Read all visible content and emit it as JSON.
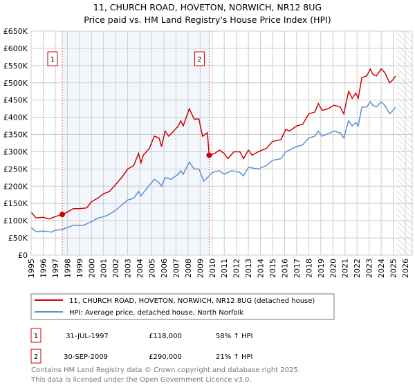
{
  "chart_data": {
    "type": "line",
    "title": "11, CHURCH ROAD, HOVETON, NORWICH, NR12 8UG",
    "subtitle": "Price paid vs. HM Land Registry's House Price Index (HPI)",
    "xlim": [
      1995,
      2026
    ],
    "ylim": [
      0,
      650000
    ],
    "x_ticks": [
      "1995",
      "1996",
      "1997",
      "1998",
      "1999",
      "2000",
      "2001",
      "2002",
      "2003",
      "2004",
      "2005",
      "2006",
      "2007",
      "2008",
      "2009",
      "2010",
      "2011",
      "2012",
      "2013",
      "2014",
      "2015",
      "2016",
      "2017",
      "2018",
      "2019",
      "2020",
      "2021",
      "2022",
      "2023",
      "2024",
      "2025",
      "2026"
    ],
    "y_ticks": [
      {
        "v": 0,
        "label": "£0"
      },
      {
        "v": 50000,
        "label": "£50K"
      },
      {
        "v": 100000,
        "label": "£100K"
      },
      {
        "v": 150000,
        "label": "£150K"
      },
      {
        "v": 200000,
        "label": "£200K"
      },
      {
        "v": 250000,
        "label": "£250K"
      },
      {
        "v": 300000,
        "label": "£300K"
      },
      {
        "v": 350000,
        "label": "£350K"
      },
      {
        "v": 400000,
        "label": "£400K"
      },
      {
        "v": 450000,
        "label": "£450K"
      },
      {
        "v": 500000,
        "label": "£500K"
      },
      {
        "v": 550000,
        "label": "£550K"
      },
      {
        "v": 600000,
        "label": "£600K"
      },
      {
        "v": 650000,
        "label": "£650K"
      }
    ],
    "grid": true,
    "shaded_range": [
      1997.58,
      2009.75
    ],
    "future_hatch_from": 2025.3,
    "series": [
      {
        "name": "11, CHURCH ROAD, HOVETON, NORWICH, NR12 8UG (detached house)",
        "color": "#cc0000",
        "points": [
          [
            1995,
            125
          ],
          [
            1995.4,
            108
          ],
          [
            1996,
            110
          ],
          [
            1996.5,
            105
          ],
          [
            1997,
            112
          ],
          [
            1997.58,
            118
          ],
          [
            1998,
            125
          ],
          [
            1998.5,
            135
          ],
          [
            1999,
            135
          ],
          [
            1999.6,
            137
          ],
          [
            2000,
            155
          ],
          [
            2000.5,
            165
          ],
          [
            2001,
            178
          ],
          [
            2001.5,
            185
          ],
          [
            2002,
            205
          ],
          [
            2002.5,
            225
          ],
          [
            2003,
            250
          ],
          [
            2003.5,
            260
          ],
          [
            2003.9,
            295
          ],
          [
            2004.1,
            268
          ],
          [
            2004.3,
            290
          ],
          [
            2004.8,
            310
          ],
          [
            2005.2,
            345
          ],
          [
            2005.6,
            340
          ],
          [
            2005.8,
            315
          ],
          [
            2006.1,
            360
          ],
          [
            2006.4,
            345
          ],
          [
            2006.8,
            360
          ],
          [
            2007.2,
            375
          ],
          [
            2007.4,
            390
          ],
          [
            2007.6,
            375
          ],
          [
            2008.1,
            425
          ],
          [
            2008.5,
            395
          ],
          [
            2008.9,
            395
          ],
          [
            2009.2,
            345
          ],
          [
            2009.6,
            355
          ],
          [
            2009.75,
            290
          ],
          [
            2010.2,
            295
          ],
          [
            2010.6,
            305
          ],
          [
            2011,
            295
          ],
          [
            2011.3,
            280
          ],
          [
            2011.8,
            300
          ],
          [
            2012.3,
            300
          ],
          [
            2012.6,
            280
          ],
          [
            2013,
            305
          ],
          [
            2013.3,
            290
          ],
          [
            2013.8,
            300
          ],
          [
            2014.5,
            310
          ],
          [
            2015,
            330
          ],
          [
            2015.7,
            335
          ],
          [
            2016.1,
            365
          ],
          [
            2016.4,
            360
          ],
          [
            2017,
            375
          ],
          [
            2017.5,
            380
          ],
          [
            2018,
            410
          ],
          [
            2018.5,
            415
          ],
          [
            2018.8,
            440
          ],
          [
            2019.1,
            420
          ],
          [
            2019.6,
            425
          ],
          [
            2020.1,
            435
          ],
          [
            2020.6,
            430
          ],
          [
            2020.9,
            410
          ],
          [
            2021.3,
            475
          ],
          [
            2021.6,
            455
          ],
          [
            2021.9,
            470
          ],
          [
            2022.1,
            455
          ],
          [
            2022.4,
            515
          ],
          [
            2022.8,
            520
          ],
          [
            2023.1,
            540
          ],
          [
            2023.3,
            525
          ],
          [
            2023.6,
            520
          ],
          [
            2024,
            540
          ],
          [
            2024.3,
            530
          ],
          [
            2024.7,
            500
          ],
          [
            2025,
            510
          ],
          [
            2025.2,
            520
          ]
        ]
      },
      {
        "name": "HPI: Average price, detached house, North Norfolk",
        "color": "#5b8fd0",
        "points": [
          [
            1995,
            80
          ],
          [
            1995.4,
            68
          ],
          [
            1996,
            70
          ],
          [
            1996.7,
            67
          ],
          [
            1997,
            72
          ],
          [
            1997.6,
            75
          ],
          [
            1998,
            80
          ],
          [
            1998.5,
            87
          ],
          [
            1999.3,
            86
          ],
          [
            2000,
            97
          ],
          [
            2000.5,
            107
          ],
          [
            2001.3,
            115
          ],
          [
            2002,
            130
          ],
          [
            2002.5,
            145
          ],
          [
            2003,
            160
          ],
          [
            2003.5,
            165
          ],
          [
            2003.9,
            185
          ],
          [
            2004.1,
            172
          ],
          [
            2004.5,
            190
          ],
          [
            2005.2,
            220
          ],
          [
            2005.6,
            210
          ],
          [
            2005.8,
            200
          ],
          [
            2006.1,
            225
          ],
          [
            2006.6,
            220
          ],
          [
            2007.2,
            235
          ],
          [
            2007.4,
            245
          ],
          [
            2007.6,
            235
          ],
          [
            2008.1,
            270
          ],
          [
            2008.5,
            250
          ],
          [
            2008.9,
            250
          ],
          [
            2009.3,
            215
          ],
          [
            2009.75,
            230
          ],
          [
            2010,
            240
          ],
          [
            2010.6,
            245
          ],
          [
            2011,
            235
          ],
          [
            2011.6,
            245
          ],
          [
            2012.3,
            240
          ],
          [
            2012.6,
            230
          ],
          [
            2013,
            255
          ],
          [
            2013.8,
            250
          ],
          [
            2014.5,
            260
          ],
          [
            2015,
            275
          ],
          [
            2015.7,
            280
          ],
          [
            2016.1,
            300
          ],
          [
            2017,
            315
          ],
          [
            2017.5,
            320
          ],
          [
            2018,
            340
          ],
          [
            2018.5,
            345
          ],
          [
            2018.8,
            360
          ],
          [
            2019.1,
            345
          ],
          [
            2020.1,
            360
          ],
          [
            2020.6,
            355
          ],
          [
            2020.9,
            340
          ],
          [
            2021.3,
            390
          ],
          [
            2021.6,
            375
          ],
          [
            2021.9,
            385
          ],
          [
            2022.1,
            375
          ],
          [
            2022.4,
            430
          ],
          [
            2022.8,
            430
          ],
          [
            2023.1,
            445
          ],
          [
            2023.3,
            435
          ],
          [
            2023.6,
            430
          ],
          [
            2024,
            445
          ],
          [
            2024.3,
            435
          ],
          [
            2024.7,
            410
          ],
          [
            2025,
            420
          ],
          [
            2025.2,
            430
          ]
        ]
      }
    ],
    "point_units": "thousands GBP",
    "sales": [
      {
        "n": "1",
        "x": 1997.58,
        "y": 118,
        "date": "31-JUL-1997",
        "price": "£118,000",
        "hpi": "58% ↑ HPI"
      },
      {
        "n": "2",
        "x": 2009.75,
        "y": 290,
        "date": "30-SEP-2009",
        "price": "£290,000",
        "hpi": "21% ↑ HPI"
      }
    ]
  },
  "footer": {
    "line1": "Contains HM Land Registry data © Crown copyright and database right 2025.",
    "line2": "This data is licensed under the Open Government Licence v3.0."
  }
}
